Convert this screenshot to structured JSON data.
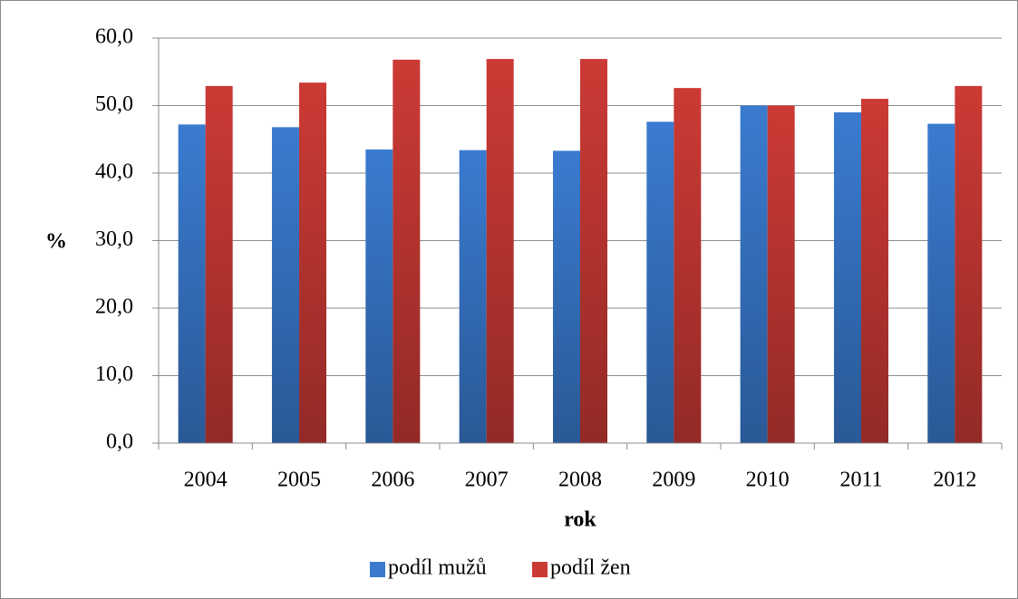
{
  "chart_data": {
    "type": "bar",
    "ylabel": "%",
    "xlabel": "rok",
    "categories": [
      "2004",
      "2005",
      "2006",
      "2007",
      "2008",
      "2009",
      "2010",
      "2011",
      "2012"
    ],
    "series": [
      {
        "name": "podíl mužů",
        "color": "#3a7bd0",
        "values": [
          47.2,
          46.8,
          43.5,
          43.4,
          43.3,
          47.6,
          50.0,
          49.0,
          47.3
        ]
      },
      {
        "name": "podíl žen",
        "color": "#cc3a35",
        "values": [
          52.9,
          53.4,
          56.8,
          56.9,
          56.9,
          52.6,
          50.0,
          51.0,
          52.9
        ]
      }
    ],
    "ylim": [
      0,
      60
    ],
    "yticks": [
      {
        "value": 0,
        "label": "0,0"
      },
      {
        "value": 10,
        "label": "10,0"
      },
      {
        "value": 20,
        "label": "20,0"
      },
      {
        "value": 30,
        "label": "30,0"
      },
      {
        "value": 40,
        "label": "40,0"
      },
      {
        "value": 50,
        "label": "50,0"
      },
      {
        "value": 60,
        "label": "60,0"
      }
    ],
    "grid": true,
    "legend": "bottom"
  }
}
